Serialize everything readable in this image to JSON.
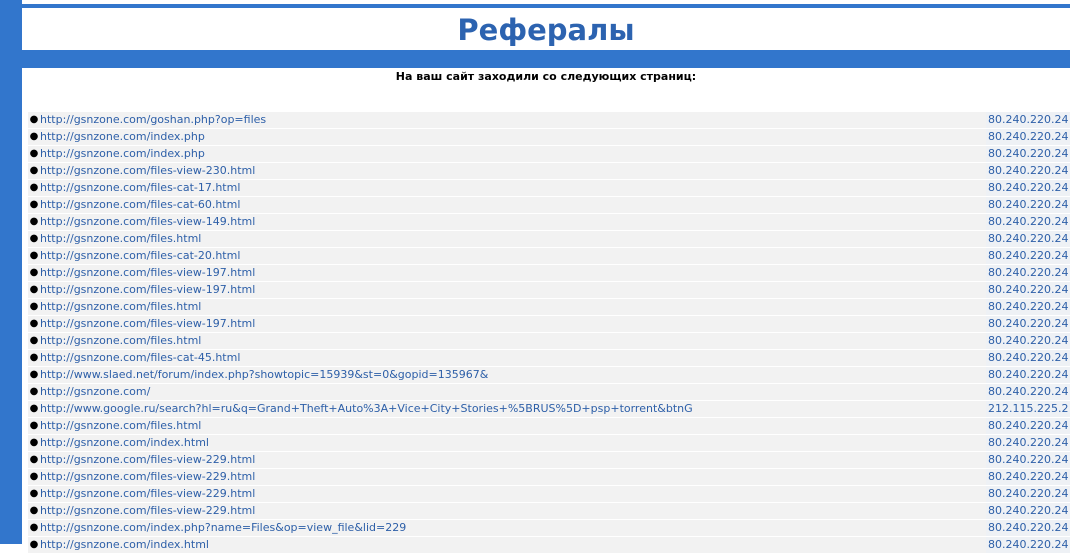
{
  "title": "Рефералы",
  "subtitle": "На ваш сайт заходили со следующих страниц:",
  "referrers": [
    {
      "url": "http://gsnzone.com/goshan.php?op=files",
      "ip": "80.240.220.24"
    },
    {
      "url": "http://gsnzone.com/index.php",
      "ip": "80.240.220.24"
    },
    {
      "url": "http://gsnzone.com/index.php",
      "ip": "80.240.220.24"
    },
    {
      "url": "http://gsnzone.com/files-view-230.html",
      "ip": "80.240.220.24"
    },
    {
      "url": "http://gsnzone.com/files-cat-17.html",
      "ip": "80.240.220.24"
    },
    {
      "url": "http://gsnzone.com/files-cat-60.html",
      "ip": "80.240.220.24"
    },
    {
      "url": "http://gsnzone.com/files-view-149.html",
      "ip": "80.240.220.24"
    },
    {
      "url": "http://gsnzone.com/files.html",
      "ip": "80.240.220.24"
    },
    {
      "url": "http://gsnzone.com/files-cat-20.html",
      "ip": "80.240.220.24"
    },
    {
      "url": "http://gsnzone.com/files-view-197.html",
      "ip": "80.240.220.24"
    },
    {
      "url": "http://gsnzone.com/files-view-197.html",
      "ip": "80.240.220.24"
    },
    {
      "url": "http://gsnzone.com/files.html",
      "ip": "80.240.220.24"
    },
    {
      "url": "http://gsnzone.com/files-view-197.html",
      "ip": "80.240.220.24"
    },
    {
      "url": "http://gsnzone.com/files.html",
      "ip": "80.240.220.24"
    },
    {
      "url": "http://gsnzone.com/files-cat-45.html",
      "ip": "80.240.220.24"
    },
    {
      "url": "http://www.slaed.net/forum/index.php?showtopic=15939&st=0&gopid=135967&",
      "ip": "80.240.220.24"
    },
    {
      "url": "http://gsnzone.com/",
      "ip": "80.240.220.24"
    },
    {
      "url": "http://www.google.ru/search?hl=ru&q=Grand+Theft+Auto%3A+Vice+City+Stories+%5BRUS%5D+psp+torrent&btnG",
      "ip": "212.115.225.2"
    },
    {
      "url": "http://gsnzone.com/files.html",
      "ip": "80.240.220.24"
    },
    {
      "url": "http://gsnzone.com/index.html",
      "ip": "80.240.220.24"
    },
    {
      "url": "http://gsnzone.com/files-view-229.html",
      "ip": "80.240.220.24"
    },
    {
      "url": "http://gsnzone.com/files-view-229.html",
      "ip": "80.240.220.24"
    },
    {
      "url": "http://gsnzone.com/files-view-229.html",
      "ip": "80.240.220.24"
    },
    {
      "url": "http://gsnzone.com/files-view-229.html",
      "ip": "80.240.220.24"
    },
    {
      "url": "http://gsnzone.com/index.php?name=Files&op=view_file&lid=229",
      "ip": "80.240.220.24"
    },
    {
      "url": "http://gsnzone.com/index.html",
      "ip": "80.240.220.24"
    }
  ]
}
